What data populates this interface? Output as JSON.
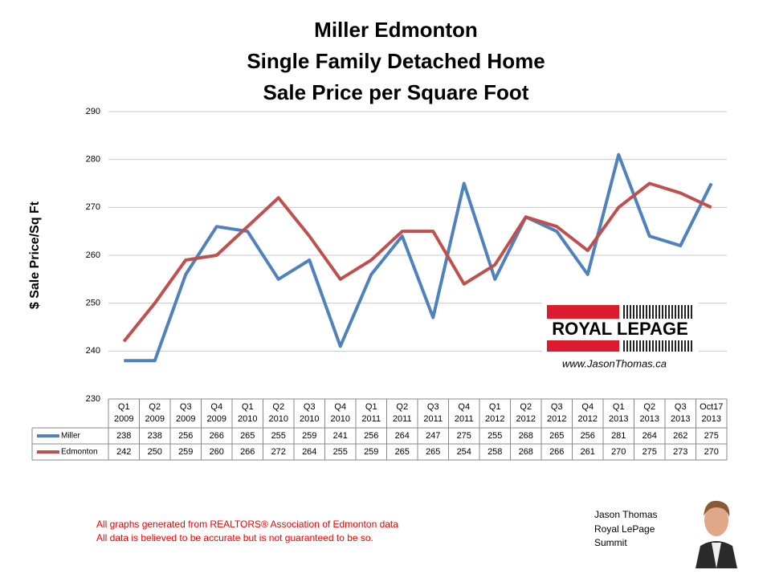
{
  "chart_data": {
    "type": "line",
    "title": [
      "Miller Edmonton",
      "Single Family Detached Home",
      "Sale Price per Square Foot"
    ],
    "y_label": "$ Sale Price/Sq Ft",
    "categories": [
      [
        "Q1",
        "2009"
      ],
      [
        "Q2",
        "2009"
      ],
      [
        "Q3",
        "2009"
      ],
      [
        "Q4",
        "2009"
      ],
      [
        "Q1",
        "2010"
      ],
      [
        "Q2",
        "2010"
      ],
      [
        "Q3",
        "2010"
      ],
      [
        "Q4",
        "2010"
      ],
      [
        "Q1",
        "2011"
      ],
      [
        "Q2",
        "2011"
      ],
      [
        "Q3",
        "2011"
      ],
      [
        "Q4",
        "2011"
      ],
      [
        "Q1",
        "2012"
      ],
      [
        "Q2",
        "2012"
      ],
      [
        "Q3",
        "2012"
      ],
      [
        "Q4",
        "2012"
      ],
      [
        "Q1",
        "2013"
      ],
      [
        "Q2",
        "2013"
      ],
      [
        "Q3",
        "2013"
      ],
      [
        "Oct17",
        "2013"
      ]
    ],
    "series": [
      {
        "name": "Miller",
        "color": "#4f81bd",
        "values": [
          238,
          238,
          256,
          266,
          265,
          255,
          259,
          241,
          256,
          264,
          247,
          275,
          255,
          268,
          265,
          256,
          281,
          264,
          262,
          275
        ]
      },
      {
        "name": "Edmonton",
        "color": "#c0504d",
        "values": [
          242,
          250,
          259,
          260,
          266,
          272,
          264,
          255,
          259,
          265,
          265,
          254,
          258,
          268,
          266,
          261,
          270,
          275,
          273,
          270
        ]
      }
    ],
    "ylim": [
      230,
      290
    ],
    "yticks": [
      230,
      240,
      250,
      260,
      270,
      280,
      290
    ],
    "grid": true
  },
  "logo": {
    "brand": "ROYAL LEPAGE",
    "url": "www.JasonThomas.ca"
  },
  "footer": {
    "notes": [
      "All graphs generated from REALTORS® Association of Edmonton data",
      "All data is believed to be accurate but is not guaranteed to be so."
    ],
    "agent": [
      "Jason Thomas",
      "Royal LePage",
      "Summit"
    ]
  }
}
